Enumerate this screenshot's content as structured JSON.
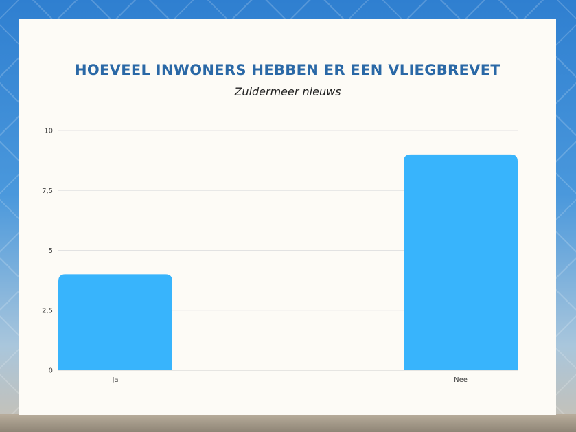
{
  "chart_data": {
    "type": "bar",
    "title": "HOEVEEL INWONERS HEBBEN ER EEN VLIEGBREVET",
    "subtitle": "Zuidermeer nieuws",
    "categories": [
      "Ja",
      "Nee"
    ],
    "values": [
      4,
      9
    ],
    "ylim": [
      0,
      10
    ],
    "yticks": [
      0,
      2.5,
      5,
      7.5,
      10
    ],
    "ytick_labels": [
      "0",
      "2,5",
      "5",
      "7,5",
      "10"
    ],
    "grid": true,
    "bar_color": "#38b4fc"
  }
}
